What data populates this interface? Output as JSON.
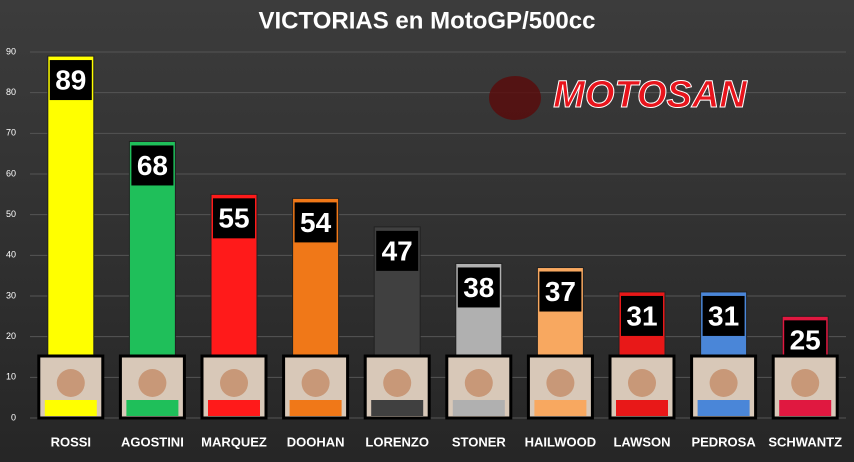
{
  "chart_data": {
    "type": "bar",
    "title": "VICTORIAS en MotoGP/500cc",
    "logo": "MOTOSAN",
    "categories": [
      "ROSSI",
      "AGOSTINI",
      "MARQUEZ",
      "DOOHAN",
      "LORENZO",
      "STONER",
      "HAILWOOD",
      "LAWSON",
      "PEDROSA",
      "SCHWANTZ"
    ],
    "values": [
      89,
      68,
      55,
      54,
      47,
      38,
      37,
      31,
      31,
      25
    ],
    "colors": [
      "#ffff00",
      "#1fbf5a",
      "#ff1a1a",
      "#f07818",
      "#404040",
      "#b0b0b0",
      "#f8a860",
      "#e81818",
      "#4a86d8",
      "#e01840"
    ],
    "ylim": [
      0,
      90
    ],
    "yticks": [
      0,
      10,
      20,
      30,
      40,
      50,
      60,
      70,
      80,
      90
    ],
    "grid": true
  }
}
